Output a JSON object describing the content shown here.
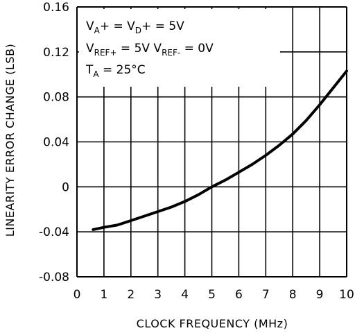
{
  "chart_data": {
    "type": "line",
    "title": "",
    "xlabel": "CLOCK FREQUENCY (MHz)",
    "ylabel": "LINEARITY ERROR CHANGE (LSB)",
    "xlim": [
      0,
      10
    ],
    "ylim": [
      -0.08,
      0.16
    ],
    "grid": true,
    "x_ticks": [
      0,
      1,
      2,
      3,
      4,
      5,
      6,
      7,
      8,
      9,
      10
    ],
    "x_tick_labels": [
      "0",
      "1",
      "2",
      "3",
      "4",
      "5",
      "6",
      "7",
      "8",
      "9",
      "10"
    ],
    "y_ticks": [
      -0.08,
      -0.04,
      0,
      0.04,
      0.08,
      0.12,
      0.16
    ],
    "y_tick_labels": [
      "-0.08",
      "-0.04",
      "0",
      "0.04",
      "0.08",
      "0.12",
      "0.16"
    ],
    "series": [
      {
        "x": [
          0.6,
          1.0,
          1.5,
          2.0,
          2.5,
          3.0,
          3.5,
          4.0,
          4.5,
          5.0,
          5.5,
          6.0,
          6.5,
          7.0,
          7.5,
          8.0,
          8.5,
          9.0,
          9.5,
          10.0
        ],
        "values": [
          -0.038,
          -0.036,
          -0.034,
          -0.03,
          -0.026,
          -0.022,
          -0.018,
          -0.013,
          -0.007,
          0.0,
          0.006,
          0.013,
          0.02,
          0.028,
          0.037,
          0.047,
          0.059,
          0.073,
          0.088,
          0.103
        ]
      }
    ],
    "annotations": [
      {
        "main": "V",
        "sub": "A",
        "rest": "+ = V",
        "sub2": "D",
        "rest2": "+ = 5V"
      },
      {
        "main": "V",
        "sub": "REF+",
        "rest": " = 5V  V",
        "sub2": "REF-",
        "rest2": " = 0V"
      },
      {
        "main": "T",
        "sub": "A",
        "rest": " = 25°C",
        "sub2": "",
        "rest2": ""
      }
    ]
  }
}
